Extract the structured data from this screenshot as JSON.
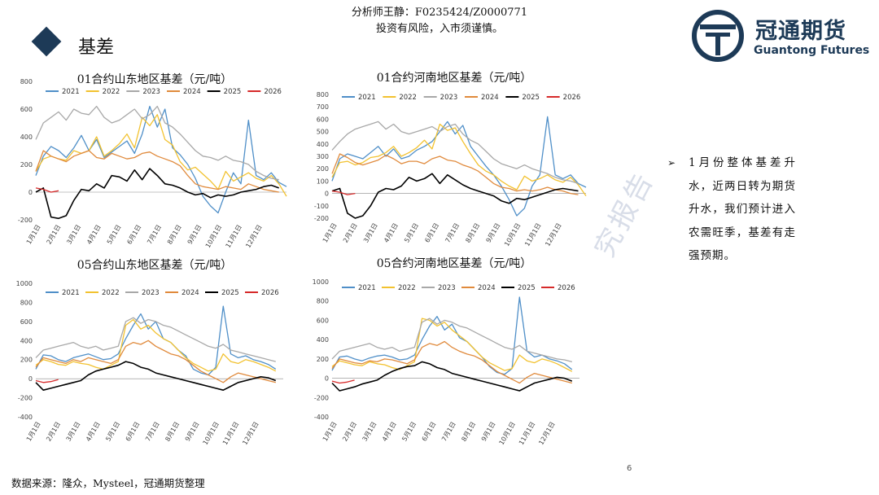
{
  "header": {
    "section_title": "基差",
    "analyst_line": "分析师王静：F0235424/Z0000771",
    "risk_line": "投资有风险，入市须谨慎。",
    "logo_cn": "冠通期货",
    "logo_en": "Guantong Futures"
  },
  "commentary": {
    "text": "1月份整体基差升水，近两日转为期货升水，我们预计进入农需旺季，基差有走强预期。"
  },
  "watermark": "究报告",
  "footer": {
    "source": "数据来源：隆众，Mysteel，冠通期货整理",
    "page_number": "6"
  },
  "colors": {
    "2021": "#4f8fc8",
    "2022": "#f2c230",
    "2023": "#a8a8a8",
    "2024": "#e08a3c",
    "2025": "#000000",
    "2026": "#d62a2a",
    "brand": "#1d3a57"
  },
  "chart_data": [
    {
      "type": "line",
      "title": "01合约山东地区基差（元/吨）",
      "legend_placement": "top",
      "ylim": [
        -200,
        800
      ],
      "yticks": [
        "800",
        "600",
        "400",
        "200",
        "0",
        "-200"
      ],
      "x_tick_labels": [
        "1月1日",
        "2月1日",
        "3月1日",
        "4月1日",
        "5月1日",
        "6月1日",
        "7月1日",
        "8月1日",
        "9月1日",
        "10月1日",
        "11月1日",
        "12月1日"
      ],
      "series": [
        {
          "name": "2021",
          "key": "2021",
          "start": 0,
          "values": [
            120,
            260,
            330,
            300,
            250,
            320,
            410,
            300,
            380,
            250,
            290,
            330,
            370,
            280,
            420,
            620,
            470,
            600,
            320,
            270,
            200,
            100,
            -30,
            -100,
            -150,
            0,
            140,
            60,
            520,
            120,
            90,
            140,
            70,
            40
          ]
        },
        {
          "name": "2022",
          "key": "2022",
          "start": 0,
          "values": [
            150,
            240,
            260,
            240,
            230,
            300,
            280,
            300,
            400,
            260,
            300,
            350,
            420,
            320,
            540,
            480,
            560,
            380,
            340,
            220,
            160,
            180,
            130,
            80,
            20,
            150,
            80,
            110,
            140,
            100,
            80,
            120,
            60,
            -30
          ]
        },
        {
          "name": "2023",
          "key": "2023",
          "start": 0,
          "values": [
            380,
            500,
            540,
            580,
            520,
            600,
            570,
            560,
            620,
            540,
            500,
            520,
            560,
            600,
            530,
            560,
            620,
            500,
            470,
            420,
            360,
            300,
            260,
            250,
            230,
            260,
            230,
            220,
            200,
            150,
            120,
            100,
            90
          ]
        },
        {
          "name": "2024",
          "key": "2024",
          "start": 0,
          "values": [
            150,
            300,
            260,
            240,
            220,
            260,
            280,
            300,
            250,
            240,
            280,
            260,
            240,
            250,
            280,
            290,
            260,
            240,
            220,
            190,
            120,
            60,
            40,
            30,
            20,
            40,
            30,
            20,
            60,
            40,
            20,
            10,
            0
          ]
        },
        {
          "name": "2025",
          "key": "2025",
          "start": 0,
          "values": [
            0,
            30,
            -180,
            -190,
            -170,
            -60,
            20,
            10,
            60,
            30,
            120,
            110,
            80,
            160,
            90,
            170,
            120,
            60,
            50,
            30,
            0,
            -20,
            -10,
            -40,
            -20,
            -30,
            -20,
            0,
            10,
            20,
            40,
            50,
            30
          ]
        },
        {
          "name": "2026",
          "key": "2026",
          "start": 0,
          "values": [
            30,
            20,
            0,
            10
          ]
        }
      ]
    },
    {
      "type": "line",
      "title": "01合约河南地区基差（元/吨）",
      "legend_placement": "top",
      "ylim": [
        -200,
        800
      ],
      "yticks": [
        "800",
        "700",
        "600",
        "500",
        "400",
        "300",
        "200",
        "100",
        "0",
        "-100",
        "-200"
      ],
      "x_tick_labels": [
        "1月1日",
        "2月1日",
        "3月1日",
        "4月1日",
        "5月1日",
        "6月1日",
        "7月1日",
        "8月1日",
        "9月1日",
        "10月1日",
        "11月1日",
        "12月1日"
      ],
      "series": [
        {
          "name": "2021",
          "key": "2021",
          "start": 0,
          "values": [
            100,
            280,
            320,
            300,
            280,
            330,
            380,
            300,
            360,
            280,
            300,
            350,
            380,
            420,
            500,
            580,
            480,
            550,
            380,
            300,
            220,
            150,
            60,
            -50,
            -180,
            -120,
            60,
            150,
            620,
            150,
            120,
            150,
            80,
            50
          ]
        },
        {
          "name": "2022",
          "key": "2022",
          "start": 0,
          "values": [
            130,
            250,
            260,
            230,
            250,
            290,
            300,
            330,
            380,
            300,
            330,
            370,
            430,
            360,
            560,
            510,
            530,
            420,
            320,
            230,
            180,
            150,
            100,
            60,
            30,
            140,
            100,
            120,
            150,
            110,
            90,
            130,
            70,
            -20
          ]
        },
        {
          "name": "2023",
          "key": "2023",
          "start": 0,
          "values": [
            350,
            420,
            480,
            520,
            540,
            560,
            580,
            520,
            560,
            500,
            480,
            500,
            520,
            540,
            500,
            540,
            560,
            480,
            430,
            400,
            340,
            280,
            240,
            220,
            200,
            230,
            200,
            180,
            160,
            130,
            110,
            100,
            80
          ]
        },
        {
          "name": "2024",
          "key": "2024",
          "start": 0,
          "values": [
            160,
            320,
            290,
            250,
            230,
            250,
            270,
            310,
            280,
            240,
            260,
            260,
            240,
            280,
            300,
            270,
            260,
            230,
            210,
            180,
            130,
            80,
            50,
            40,
            20,
            30,
            20,
            30,
            50,
            30,
            20,
            0,
            -10
          ]
        },
        {
          "name": "2025",
          "key": "2025",
          "start": 0,
          "values": [
            20,
            40,
            -160,
            -200,
            -180,
            -100,
            10,
            40,
            30,
            60,
            130,
            100,
            120,
            160,
            80,
            150,
            110,
            70,
            40,
            20,
            0,
            -20,
            -60,
            -80,
            -40,
            -50,
            -30,
            -10,
            10,
            30,
            40,
            30,
            20
          ]
        },
        {
          "name": "2026",
          "key": "2026",
          "start": 0,
          "values": [
            20,
            10,
            -10,
            0
          ]
        }
      ]
    },
    {
      "type": "line",
      "title": "05合约山东地区基差（元/吨）",
      "legend_placement": "top",
      "ylim": [
        -400,
        1000
      ],
      "yticks": [
        "1000",
        "800",
        "600",
        "400",
        "200",
        "0",
        "-200",
        "-400"
      ],
      "x_tick_labels": [
        "1月1日",
        "2月1日",
        "3月1日",
        "4月1日",
        "5月1日",
        "6月1日",
        "7月1日",
        "8月1日",
        "9月1日",
        "10月1日",
        "11月1日",
        "12月1日"
      ],
      "series": [
        {
          "name": "2021",
          "key": "2021",
          "start": 0,
          "values": [
            100,
            250,
            240,
            200,
            180,
            220,
            240,
            260,
            230,
            200,
            210,
            260,
            420,
            560,
            680,
            520,
            600,
            420,
            380,
            300,
            240,
            100,
            60,
            40,
            120,
            760,
            260,
            220,
            240,
            200,
            180,
            150,
            100
          ]
        },
        {
          "name": "2022",
          "key": "2022",
          "start": 0,
          "values": [
            140,
            200,
            180,
            150,
            140,
            180,
            160,
            150,
            120,
            100,
            140,
            180,
            560,
            620,
            520,
            560,
            480,
            420,
            380,
            300,
            220,
            160,
            120,
            80,
            100,
            260,
            180,
            160,
            200,
            180,
            150,
            120,
            80
          ]
        },
        {
          "name": "2023",
          "key": "2023",
          "start": 0,
          "values": [
            220,
            300,
            320,
            340,
            360,
            380,
            340,
            320,
            340,
            300,
            320,
            340,
            600,
            640,
            580,
            620,
            600,
            560,
            540,
            500,
            460,
            420,
            380,
            340,
            320,
            360,
            300,
            280,
            260,
            240,
            220,
            200,
            180
          ]
        },
        {
          "name": "2024",
          "key": "2024",
          "start": 0,
          "values": [
            120,
            220,
            200,
            180,
            160,
            200,
            180,
            220,
            200,
            180,
            160,
            200,
            340,
            380,
            360,
            400,
            340,
            300,
            260,
            240,
            200,
            140,
            80,
            40,
            0,
            -40,
            20,
            60,
            40,
            20,
            0,
            -20,
            -40
          ]
        },
        {
          "name": "2025",
          "key": "2025",
          "start": 0,
          "values": [
            -40,
            -120,
            -100,
            -80,
            -60,
            -40,
            -20,
            40,
            80,
            100,
            120,
            140,
            180,
            160,
            120,
            100,
            60,
            40,
            20,
            0,
            -20,
            -40,
            -60,
            -80,
            -100,
            -120,
            -80,
            -40,
            -20,
            0,
            20,
            10,
            -20
          ]
        },
        {
          "name": "2026",
          "key": "2026",
          "start": 0,
          "values": [
            -20,
            -40,
            -30,
            -10
          ]
        }
      ]
    },
    {
      "type": "line",
      "title": "05合约河南地区基差（元/吨）",
      "legend_placement": "top",
      "ylim": [
        -400,
        1000
      ],
      "yticks": [
        "1000",
        "800",
        "600",
        "400",
        "200",
        "0",
        "-200",
        "-400"
      ],
      "x_tick_labels": [
        "1月1日",
        "2月1日",
        "3月1日",
        "4月1日",
        "5月1日",
        "6月1日",
        "7月1日",
        "8月1日",
        "9月1日",
        "10月1日",
        "11月1日",
        "12月1日"
      ],
      "series": [
        {
          "name": "2021",
          "key": "2021",
          "start": 0,
          "values": [
            80,
            220,
            230,
            200,
            180,
            210,
            230,
            240,
            220,
            190,
            200,
            240,
            400,
            540,
            640,
            500,
            560,
            420,
            380,
            300,
            220,
            120,
            60,
            40,
            100,
            840,
            280,
            220,
            240,
            200,
            180,
            150,
            90
          ]
        },
        {
          "name": "2022",
          "key": "2022",
          "start": 0,
          "values": [
            120,
            180,
            160,
            140,
            130,
            170,
            150,
            140,
            110,
            90,
            130,
            170,
            620,
            600,
            540,
            580,
            500,
            440,
            380,
            300,
            220,
            160,
            120,
            80,
            100,
            240,
            180,
            160,
            200,
            180,
            150,
            110,
            70
          ]
        },
        {
          "name": "2023",
          "key": "2023",
          "start": 0,
          "values": [
            200,
            280,
            300,
            320,
            340,
            360,
            320,
            300,
            320,
            280,
            300,
            320,
            580,
            620,
            560,
            600,
            580,
            540,
            520,
            480,
            440,
            400,
            360,
            320,
            300,
            340,
            280,
            260,
            240,
            220,
            200,
            190,
            170
          ]
        },
        {
          "name": "2024",
          "key": "2024",
          "start": 0,
          "values": [
            100,
            200,
            180,
            160,
            150,
            180,
            170,
            200,
            190,
            170,
            150,
            190,
            320,
            360,
            340,
            380,
            320,
            280,
            250,
            230,
            190,
            130,
            70,
            30,
            -10,
            -50,
            10,
            50,
            30,
            10,
            -10,
            -30,
            -50
          ]
        },
        {
          "name": "2025",
          "key": "2025",
          "start": 0,
          "values": [
            -50,
            -130,
            -110,
            -90,
            -60,
            -40,
            -20,
            30,
            70,
            100,
            120,
            130,
            170,
            150,
            110,
            90,
            50,
            30,
            10,
            -10,
            -30,
            -50,
            -70,
            -90,
            -110,
            -130,
            -90,
            -50,
            -30,
            -10,
            10,
            0,
            -30
          ]
        },
        {
          "name": "2026",
          "key": "2026",
          "start": 0,
          "values": [
            -30,
            -50,
            -40,
            -20
          ]
        }
      ]
    }
  ]
}
